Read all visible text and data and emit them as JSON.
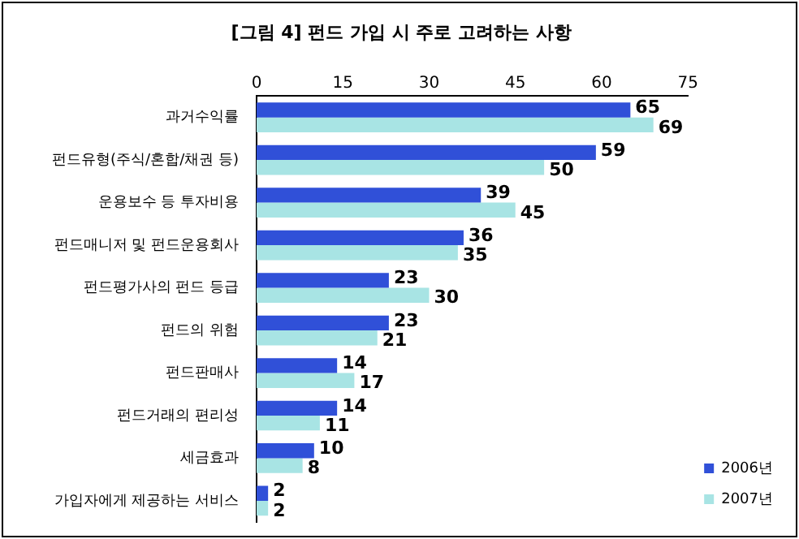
{
  "chart_data": {
    "type": "bar",
    "orientation": "horizontal",
    "title": "[그림 4] 펀드 가입 시 주로 고려하는 사항",
    "categories": [
      "과거수익률",
      "펀드유형(주식/혼합/채권 등)",
      "운용보수 등 투자비용",
      "펀드매니저 및 펀드운용회사",
      "펀드평가사의 펀드 등급",
      "펀드의 위험",
      "펀드판매사",
      "펀드거래의 편리성",
      "세금효과",
      "가입자에게 제공하는 서비스"
    ],
    "series": [
      {
        "name": "2006년",
        "color": "#3050d8",
        "values": [
          65,
          59,
          39,
          36,
          23,
          23,
          14,
          14,
          10,
          2
        ]
      },
      {
        "name": "2007년",
        "color": "#a8e4e4",
        "values": [
          69,
          50,
          45,
          35,
          30,
          21,
          17,
          11,
          8,
          2
        ]
      }
    ],
    "xlim": [
      0,
      75
    ],
    "xticks": [
      0,
      15,
      30,
      45,
      60,
      75
    ],
    "grid": false,
    "legend": "bottom right",
    "data_labels": true
  }
}
